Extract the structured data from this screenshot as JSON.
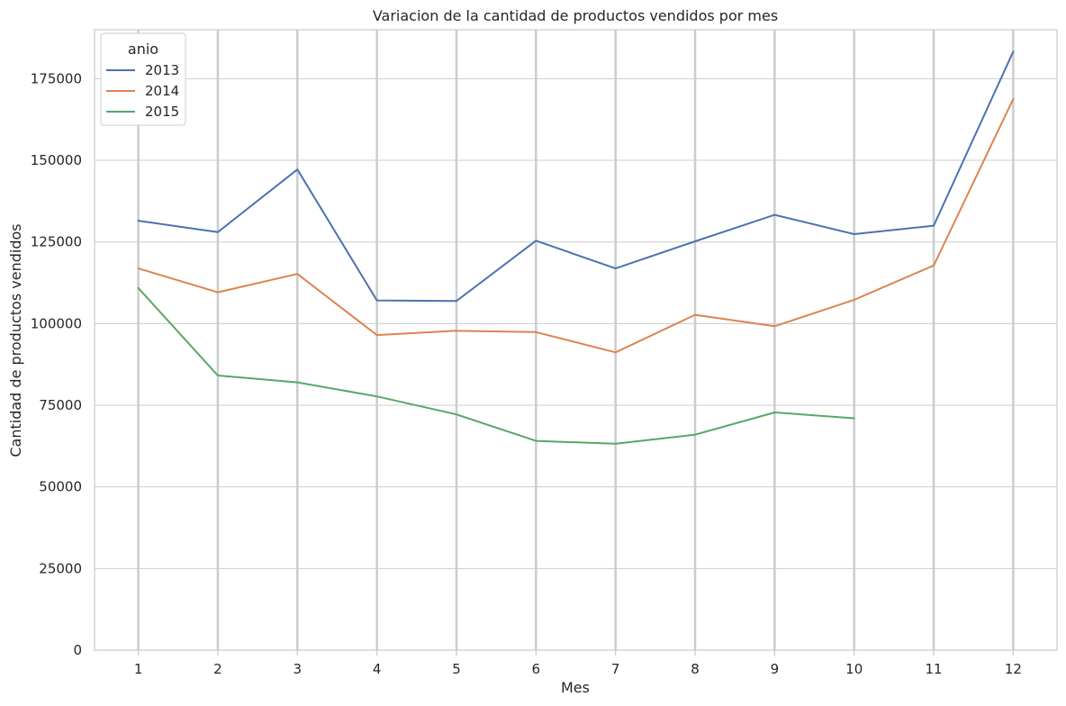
{
  "chart_data": {
    "type": "line",
    "title": "Variacion de la cantidad de productos vendidos por mes",
    "xlabel": "Mes",
    "ylabel": "Cantidad de productos vendidos",
    "x": [
      1,
      2,
      3,
      4,
      5,
      6,
      7,
      8,
      9,
      10,
      11,
      12
    ],
    "x_tick_labels": [
      "1",
      "2",
      "3",
      "4",
      "5",
      "6",
      "7",
      "8",
      "9",
      "10",
      "11",
      "12"
    ],
    "xlim": [
      0.45,
      12.55
    ],
    "ylim": [
      0,
      190000
    ],
    "y_ticks": [
      0,
      25000,
      50000,
      75000,
      100000,
      125000,
      150000,
      175000
    ],
    "y_tick_labels": [
      "0",
      "25000",
      "50000",
      "75000",
      "100000",
      "125000",
      "150000",
      "175000"
    ],
    "grid": true,
    "legend": {
      "title": "anio",
      "placement": "top-left"
    },
    "series": [
      {
        "name": "2013",
        "color": "#4c72b0",
        "values": [
          131500,
          128000,
          147200,
          107100,
          106900,
          125400,
          116900,
          125200,
          133300,
          127400,
          130000,
          183300
        ]
      },
      {
        "name": "2014",
        "color": "#dd8452",
        "values": [
          116900,
          109600,
          115200,
          96500,
          97800,
          97400,
          91200,
          102700,
          99200,
          107300,
          117800,
          168800
        ]
      },
      {
        "name": "2015",
        "color": "#55a868",
        "values": [
          110900,
          84100,
          82000,
          77700,
          72200,
          64100,
          63200,
          66000,
          72800,
          71000,
          null,
          null
        ]
      }
    ]
  }
}
